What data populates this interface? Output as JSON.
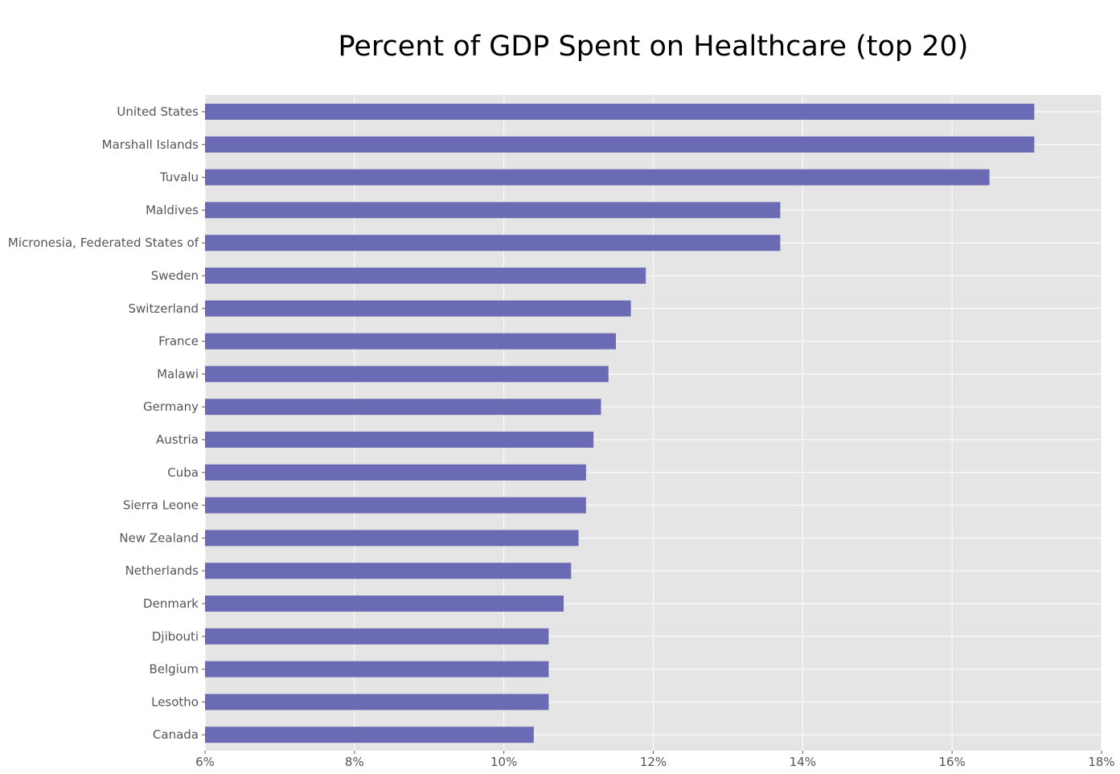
{
  "chart_data": {
    "type": "bar",
    "orientation": "horizontal",
    "title": "Percent of GDP Spent on Healthcare (top 20)",
    "xlabel": "",
    "ylabel": "",
    "xlim": [
      6,
      18
    ],
    "x_ticks": [
      6,
      8,
      10,
      12,
      14,
      16,
      18
    ],
    "x_tick_labels": [
      "6%",
      "8%",
      "10%",
      "12%",
      "14%",
      "16%",
      "18%"
    ],
    "grid": true,
    "bar_color": "#6b6bb5",
    "background_color": "#e5e5e5",
    "categories": [
      "United States",
      "Marshall Islands",
      "Tuvalu",
      "Maldives",
      "Micronesia, Federated States of",
      "Sweden",
      "Switzerland",
      "France",
      "Malawi",
      "Germany",
      "Austria",
      "Cuba",
      "Sierra Leone",
      "New Zealand",
      "Netherlands",
      "Denmark",
      "Djibouti",
      "Belgium",
      "Lesotho",
      "Canada"
    ],
    "values": [
      17.1,
      17.1,
      16.5,
      13.7,
      13.7,
      11.9,
      11.7,
      11.5,
      11.4,
      11.3,
      11.2,
      11.1,
      11.1,
      11.0,
      10.9,
      10.8,
      10.6,
      10.6,
      10.6,
      10.4
    ]
  }
}
